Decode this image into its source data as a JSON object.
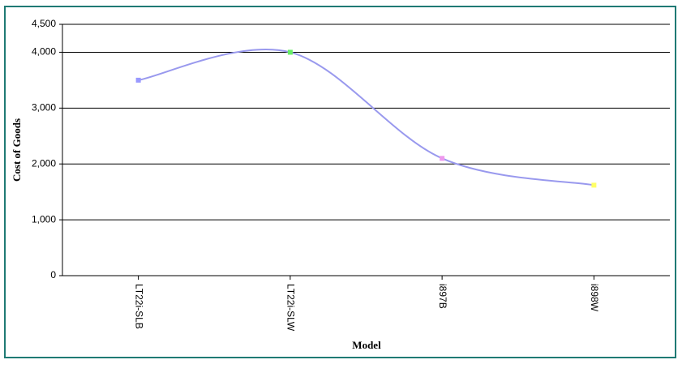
{
  "chart_data": {
    "type": "line",
    "x_label": "Model",
    "y_label": "Cost of Goods",
    "categories": [
      "LT22i-SLB",
      "LT22i-SLW",
      "i897B",
      "i898W"
    ],
    "series": [
      {
        "color": "#9999ee",
        "point_colors": [
          "#9999ff",
          "#66ee66",
          "#ee99ee",
          "#ffff66"
        ],
        "values": [
          3500,
          4000,
          2100,
          1620
        ]
      }
    ],
    "ylim": [
      0,
      4500
    ],
    "yticks": [
      0,
      {
        "value": 1000,
        "label": "1,000"
      },
      {
        "value": 2000,
        "label": "2,000"
      },
      {
        "value": 3000,
        "label": "3,000"
      },
      {
        "value": 4000,
        "label": "4,000"
      },
      {
        "value": 4500,
        "label": "4,500"
      }
    ],
    "grid": true,
    "smooth": true
  }
}
